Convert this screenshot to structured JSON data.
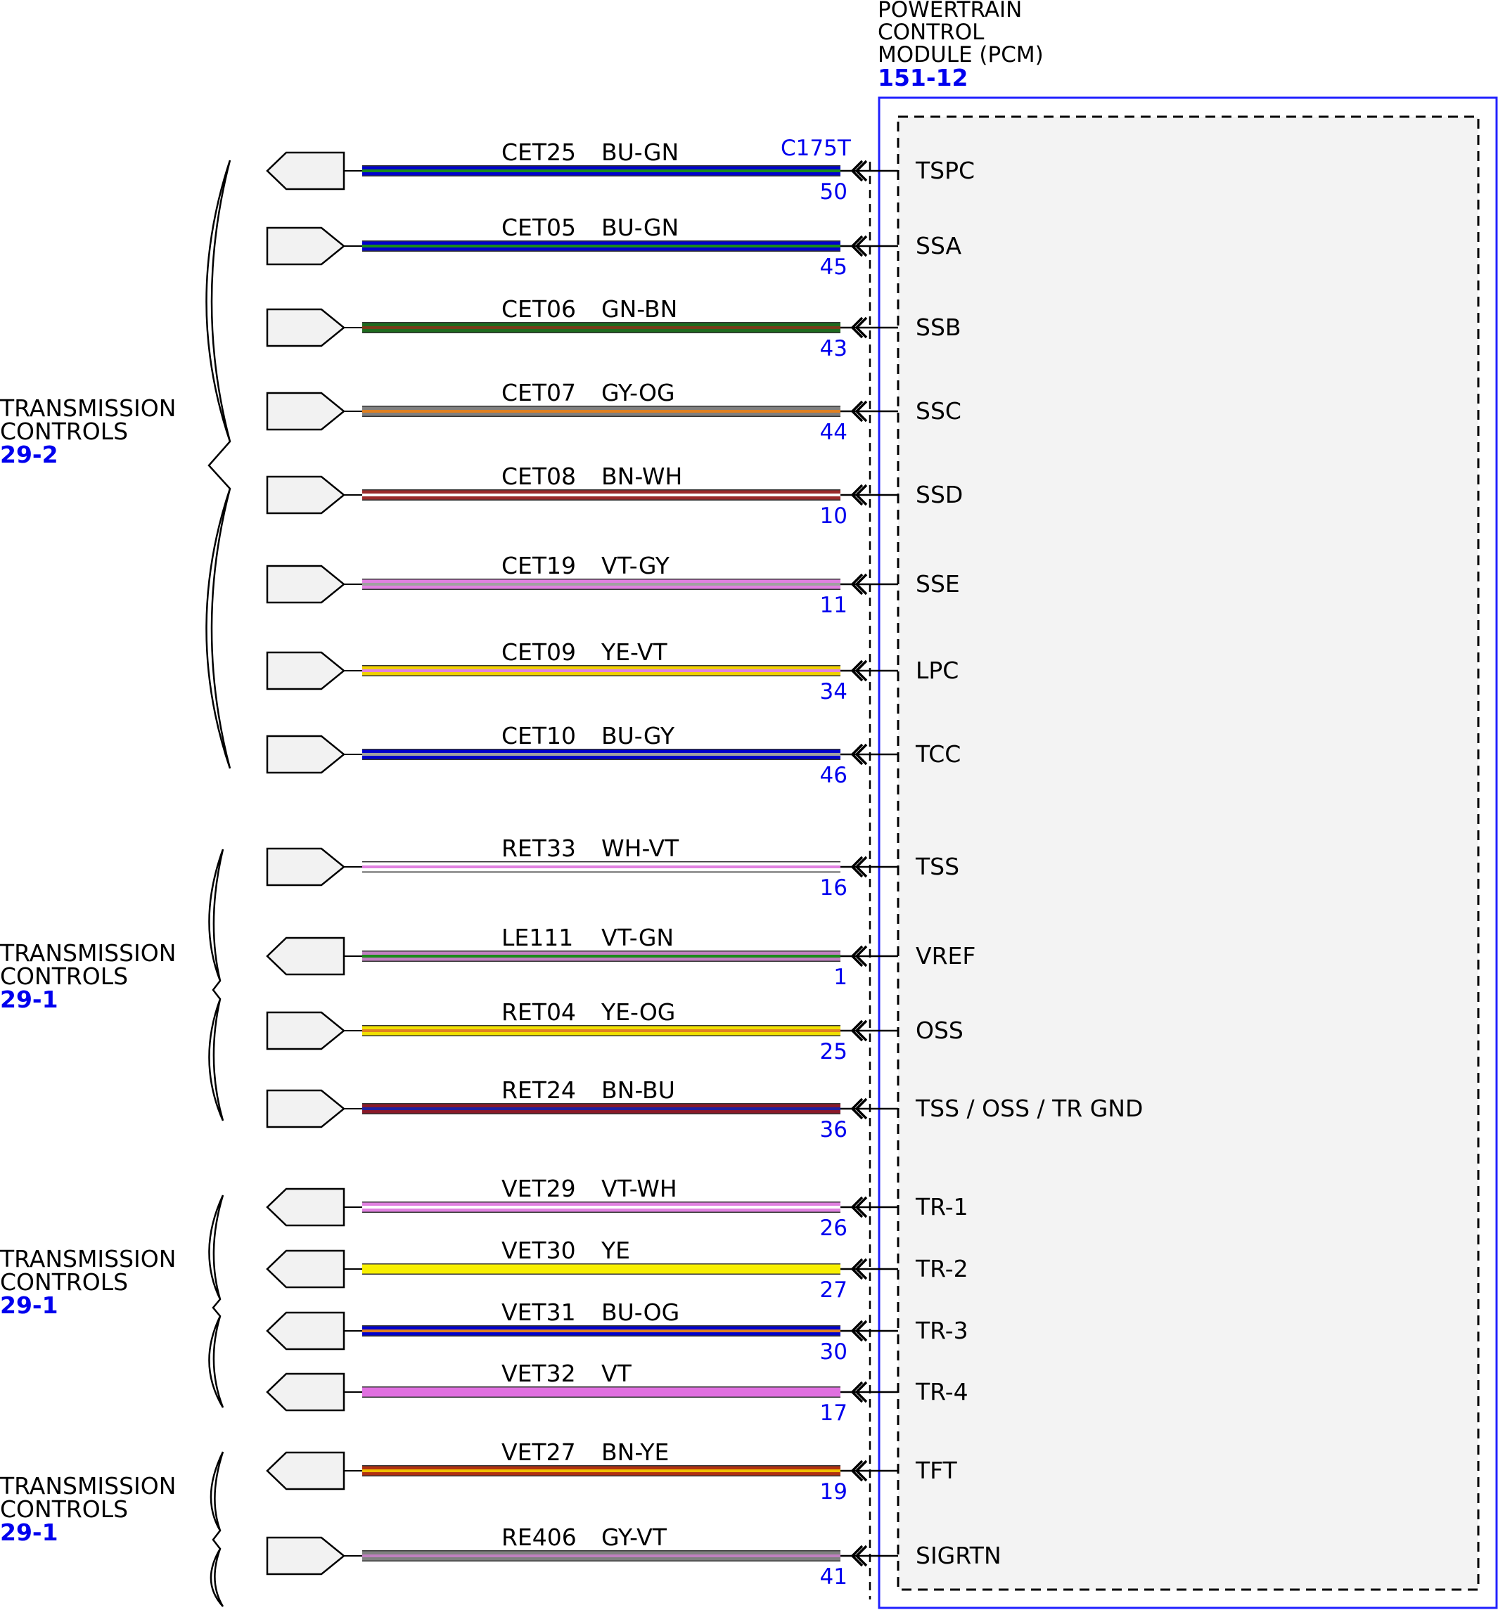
{
  "module": {
    "title_lines": [
      "POWERTRAIN",
      "CONTROL",
      "MODULE (PCM)"
    ],
    "ref": "151-12",
    "connector": "C175T"
  },
  "groups": [
    {
      "label_lines": [
        "TRANSMISSION",
        "CONTROLS"
      ],
      "ref": "29-2"
    },
    {
      "label_lines": [
        "TRANSMISSION",
        "CONTROLS"
      ],
      "ref": "29-1"
    },
    {
      "label_lines": [
        "TRANSMISSION",
        "CONTROLS"
      ],
      "ref": "29-1"
    },
    {
      "label_lines": [
        "TRANSMISSION",
        "CONTROLS"
      ],
      "ref": "29-1"
    }
  ],
  "circuits": [
    {
      "circuit": "CET25",
      "color_code": "BU-GN",
      "pin": "50",
      "signal": "TSPC",
      "arrow": "left",
      "colors": [
        "#0000cc",
        "#1a8a1a"
      ]
    },
    {
      "circuit": "CET05",
      "color_code": "BU-GN",
      "pin": "45",
      "signal": "SSA",
      "arrow": "right",
      "colors": [
        "#0000cc",
        "#1a8a1a"
      ]
    },
    {
      "circuit": "CET06",
      "color_code": "GN-BN",
      "pin": "43",
      "signal": "SSB",
      "arrow": "right",
      "colors": [
        "#1f6b1f",
        "#7a3b1a"
      ]
    },
    {
      "circuit": "CET07",
      "color_code": "GY-OG",
      "pin": "44",
      "signal": "SSC",
      "arrow": "right",
      "colors": [
        "#808080",
        "#e08020"
      ]
    },
    {
      "circuit": "CET08",
      "color_code": "BN-WH",
      "pin": "10",
      "signal": "SSD",
      "arrow": "right",
      "colors": [
        "#9a2a2a",
        "#ffffff"
      ]
    },
    {
      "circuit": "CET19",
      "color_code": "VT-GY",
      "pin": "11",
      "signal": "SSE",
      "arrow": "right",
      "colors": [
        "#e080e0",
        "#a0a0a0"
      ]
    },
    {
      "circuit": "CET09",
      "color_code": "YE-VT",
      "pin": "34",
      "signal": "LPC",
      "arrow": "right",
      "colors": [
        "#f0d000",
        "#e080e0"
      ]
    },
    {
      "circuit": "CET10",
      "color_code": "BU-GY",
      "pin": "46",
      "signal": "TCC",
      "arrow": "right",
      "colors": [
        "#0000cc",
        "#a0a0a0"
      ]
    },
    {
      "circuit": "RET33",
      "color_code": "WH-VT",
      "pin": "16",
      "signal": "TSS",
      "arrow": "right",
      "colors": [
        "#ffffff",
        "#e080e0"
      ]
    },
    {
      "circuit": "LE111",
      "color_code": "VT-GN",
      "pin": "1",
      "signal": "VREF",
      "arrow": "left",
      "colors": [
        "#c080c0",
        "#1a8a1a"
      ]
    },
    {
      "circuit": "RET04",
      "color_code": "YE-OG",
      "pin": "25",
      "signal": "OSS",
      "arrow": "right",
      "colors": [
        "#f0e000",
        "#e08020"
      ]
    },
    {
      "circuit": "RET24",
      "color_code": "BN-BU",
      "pin": "36",
      "signal": "TSS / OSS / TR GND",
      "arrow": "right",
      "colors": [
        "#8a1a2a",
        "#2020a0"
      ]
    },
    {
      "circuit": "VET29",
      "color_code": "VT-WH",
      "pin": "26",
      "signal": "TR-1",
      "arrow": "left",
      "colors": [
        "#e080e0",
        "#ffffff"
      ]
    },
    {
      "circuit": "VET30",
      "color_code": "YE",
      "pin": "27",
      "signal": "TR-2",
      "arrow": "left",
      "colors": [
        "#f8f000",
        "#f8f000"
      ]
    },
    {
      "circuit": "VET31",
      "color_code": "BU-OG",
      "pin": "30",
      "signal": "TR-3",
      "arrow": "left",
      "colors": [
        "#0000cc",
        "#e08020"
      ]
    },
    {
      "circuit": "VET32",
      "color_code": "VT",
      "pin": "17",
      "signal": "TR-4",
      "arrow": "left",
      "colors": [
        "#e070e0",
        "#e070e0"
      ]
    },
    {
      "circuit": "VET27",
      "color_code": "BN-YE",
      "pin": "19",
      "signal": "TFT",
      "arrow": "left",
      "colors": [
        "#b03010",
        "#f0c000"
      ]
    },
    {
      "circuit": "RE406",
      "color_code": "GY-VT",
      "pin": "41",
      "signal": "SIGRTN",
      "arrow": "right",
      "colors": [
        "#808080",
        "#c080c0"
      ]
    }
  ]
}
